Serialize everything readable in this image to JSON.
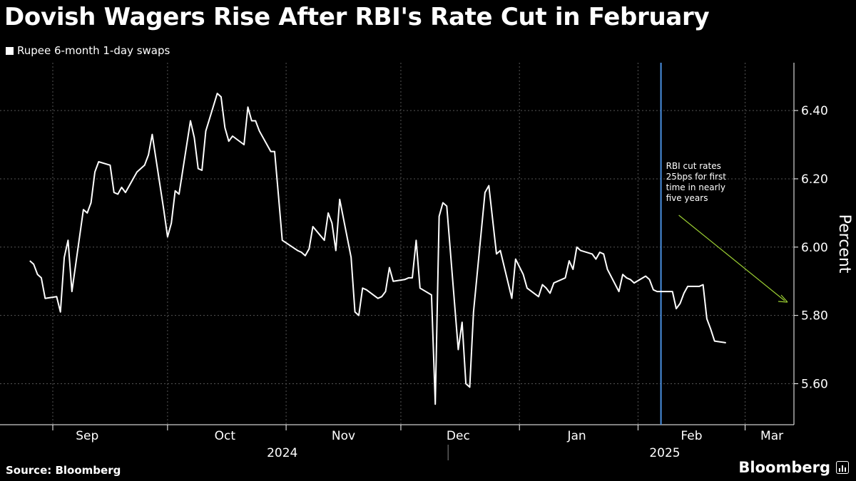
{
  "header": {
    "title": "Dovish Wagers Rise After RBI's Rate Cut in February"
  },
  "legend": {
    "label": "Rupee 6-month 1-day swaps",
    "color": "#ffffff"
  },
  "footer": {
    "source": "Source: Bloomberg",
    "brand": "Bloomberg",
    "brand_icon": "bloomberg-chart-icon"
  },
  "colors": {
    "background": "#000000",
    "line": "#ffffff",
    "event_line": "#4a90e2",
    "annotation_arrow": "#9acd32",
    "gridline": "#555555"
  },
  "chart_data": {
    "type": "line",
    "ylabel": "Percent",
    "ylim": [
      5.48,
      6.54
    ],
    "yticks": [
      5.6,
      5.8,
      6.0,
      6.2,
      6.4
    ],
    "ytick_labels": [
      "5.60",
      "5.80",
      "6.00",
      "6.20",
      "6.40"
    ],
    "x_start": "2024-09-01",
    "x_end": "2025-03-05",
    "month_ticks": [
      "2024-09-01",
      "2024-10-01",
      "2024-11-01",
      "2024-12-01",
      "2025-01-01",
      "2025-02-01",
      "2025-03-01"
    ],
    "month_labels": [
      {
        "date": "2024-09-10",
        "label": "Sep"
      },
      {
        "date": "2024-10-16",
        "label": "Oct"
      },
      {
        "date": "2024-11-16",
        "label": "Nov"
      },
      {
        "date": "2024-12-16",
        "label": "Dec"
      },
      {
        "date": "2025-01-16",
        "label": "Jan"
      },
      {
        "date": "2025-02-15",
        "label": "Feb"
      },
      {
        "date": "2025-03-08",
        "label": "Mar"
      }
    ],
    "year_labels": [
      {
        "date": "2024-10-31",
        "label": "2024"
      },
      {
        "date": "2025-02-08",
        "label": "2025"
      }
    ],
    "year_divider": "2025-01-01",
    "series": [
      {
        "name": "Rupee 6-month 1-day swaps",
        "points": [
          [
            "2024-08-26",
            5.96
          ],
          [
            "2024-08-27",
            5.95
          ],
          [
            "2024-08-28",
            5.92
          ],
          [
            "2024-08-29",
            5.91
          ],
          [
            "2024-08-30",
            5.85
          ],
          [
            "2024-09-02",
            5.855
          ],
          [
            "2024-09-03",
            5.81
          ],
          [
            "2024-09-04",
            5.97
          ],
          [
            "2024-09-05",
            6.02
          ],
          [
            "2024-09-06",
            5.87
          ],
          [
            "2024-09-09",
            6.11
          ],
          [
            "2024-09-10",
            6.1
          ],
          [
            "2024-09-11",
            6.13
          ],
          [
            "2024-09-12",
            6.22
          ],
          [
            "2024-09-13",
            6.25
          ],
          [
            "2024-09-16",
            6.24
          ],
          [
            "2024-09-17",
            6.16
          ],
          [
            "2024-09-18",
            6.155
          ],
          [
            "2024-09-19",
            6.175
          ],
          [
            "2024-09-20",
            6.16
          ],
          [
            "2024-09-23",
            6.22
          ],
          [
            "2024-09-24",
            6.23
          ],
          [
            "2024-09-25",
            6.24
          ],
          [
            "2024-09-26",
            6.27
          ],
          [
            "2024-09-27",
            6.33
          ],
          [
            "2024-09-30",
            6.11
          ],
          [
            "2024-10-01",
            6.03
          ],
          [
            "2024-10-02",
            6.07
          ],
          [
            "2024-10-03",
            6.165
          ],
          [
            "2024-10-04",
            6.155
          ],
          [
            "2024-10-07",
            6.37
          ],
          [
            "2024-10-08",
            6.32
          ],
          [
            "2024-10-09",
            6.23
          ],
          [
            "2024-10-10",
            6.225
          ],
          [
            "2024-10-11",
            6.34
          ],
          [
            "2024-10-14",
            6.45
          ],
          [
            "2024-10-15",
            6.44
          ],
          [
            "2024-10-16",
            6.35
          ],
          [
            "2024-10-17",
            6.31
          ],
          [
            "2024-10-18",
            6.325
          ],
          [
            "2024-10-21",
            6.3
          ],
          [
            "2024-10-22",
            6.41
          ],
          [
            "2024-10-23",
            6.37
          ],
          [
            "2024-10-24",
            6.37
          ],
          [
            "2024-10-25",
            6.34
          ],
          [
            "2024-10-28",
            6.28
          ],
          [
            "2024-10-29",
            6.28
          ],
          [
            "2024-10-30",
            6.15
          ],
          [
            "2024-10-31",
            6.02
          ],
          [
            "2024-11-04",
            5.99
          ],
          [
            "2024-11-05",
            5.985
          ],
          [
            "2024-11-06",
            5.975
          ],
          [
            "2024-11-07",
            5.995
          ],
          [
            "2024-11-08",
            6.06
          ],
          [
            "2024-11-11",
            6.02
          ],
          [
            "2024-11-12",
            6.1
          ],
          [
            "2024-11-13",
            6.07
          ],
          [
            "2024-11-14",
            5.99
          ],
          [
            "2024-11-15",
            6.14
          ],
          [
            "2024-11-18",
            5.97
          ],
          [
            "2024-11-19",
            5.81
          ],
          [
            "2024-11-20",
            5.8
          ],
          [
            "2024-11-21",
            5.88
          ],
          [
            "2024-11-22",
            5.875
          ],
          [
            "2024-11-25",
            5.85
          ],
          [
            "2024-11-26",
            5.855
          ],
          [
            "2024-11-27",
            5.87
          ],
          [
            "2024-11-28",
            5.94
          ],
          [
            "2024-11-29",
            5.9
          ],
          [
            "2024-12-02",
            5.905
          ],
          [
            "2024-12-03",
            5.91
          ],
          [
            "2024-12-04",
            5.91
          ],
          [
            "2024-12-05",
            6.02
          ],
          [
            "2024-12-06",
            5.88
          ],
          [
            "2024-12-09",
            5.86
          ],
          [
            "2024-12-10",
            5.54
          ],
          [
            "2024-12-11",
            6.09
          ],
          [
            "2024-12-12",
            6.13
          ],
          [
            "2024-12-13",
            6.12
          ],
          [
            "2024-12-16",
            5.7
          ],
          [
            "2024-12-17",
            5.78
          ],
          [
            "2024-12-18",
            5.6
          ],
          [
            "2024-12-19",
            5.59
          ],
          [
            "2024-12-20",
            5.81
          ],
          [
            "2024-12-23",
            6.16
          ],
          [
            "2024-12-24",
            6.18
          ],
          [
            "2024-12-26",
            5.98
          ],
          [
            "2024-12-27",
            5.99
          ],
          [
            "2024-12-30",
            5.85
          ],
          [
            "2024-12-31",
            5.965
          ],
          [
            "2025-01-02",
            5.92
          ],
          [
            "2025-01-03",
            5.88
          ],
          [
            "2025-01-06",
            5.855
          ],
          [
            "2025-01-07",
            5.89
          ],
          [
            "2025-01-08",
            5.88
          ],
          [
            "2025-01-09",
            5.865
          ],
          [
            "2025-01-10",
            5.895
          ],
          [
            "2025-01-13",
            5.91
          ],
          [
            "2025-01-14",
            5.96
          ],
          [
            "2025-01-15",
            5.935
          ],
          [
            "2025-01-16",
            6.0
          ],
          [
            "2025-01-17",
            5.99
          ],
          [
            "2025-01-20",
            5.98
          ],
          [
            "2025-01-21",
            5.965
          ],
          [
            "2025-01-22",
            5.985
          ],
          [
            "2025-01-23",
            5.98
          ],
          [
            "2025-01-24",
            5.935
          ],
          [
            "2025-01-27",
            5.87
          ],
          [
            "2025-01-28",
            5.92
          ],
          [
            "2025-01-29",
            5.91
          ],
          [
            "2025-01-30",
            5.905
          ],
          [
            "2025-01-31",
            5.895
          ],
          [
            "2025-02-03",
            5.915
          ],
          [
            "2025-02-04",
            5.905
          ],
          [
            "2025-02-05",
            5.875
          ],
          [
            "2025-02-06",
            5.87
          ],
          [
            "2025-02-07",
            5.87
          ],
          [
            "2025-02-10",
            5.87
          ],
          [
            "2025-02-11",
            5.82
          ],
          [
            "2025-02-12",
            5.835
          ],
          [
            "2025-02-13",
            5.865
          ],
          [
            "2025-02-14",
            5.885
          ],
          [
            "2025-02-17",
            5.885
          ],
          [
            "2025-02-18",
            5.89
          ],
          [
            "2025-02-19",
            5.79
          ],
          [
            "2025-02-20",
            5.76
          ],
          [
            "2025-02-21",
            5.725
          ],
          [
            "2025-02-24",
            5.72
          ]
        ]
      }
    ],
    "event_line": {
      "date": "2025-02-07",
      "annotation": [
        "RBI cut rates",
        "25bps for first",
        "time in nearly",
        "five years"
      ]
    }
  }
}
